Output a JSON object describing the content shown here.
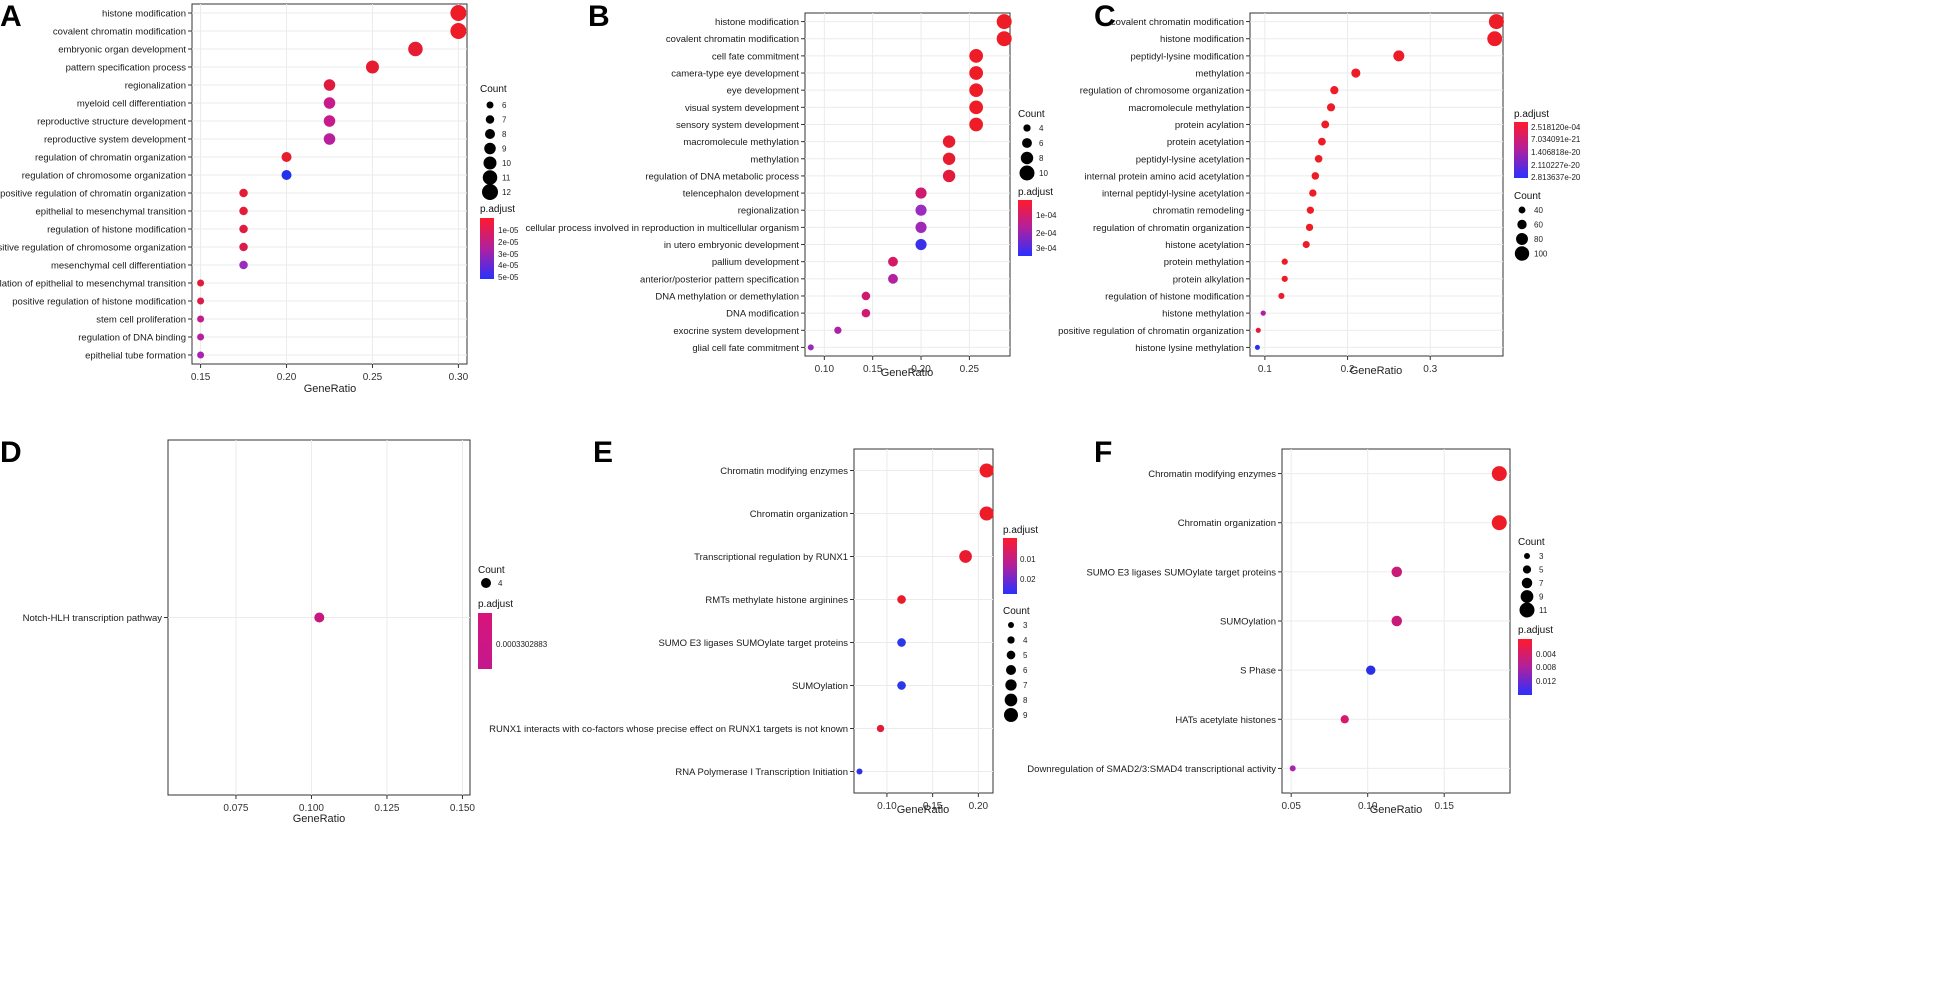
{
  "chart_data": [
    {
      "panel": "A",
      "type": "scatter",
      "categories": [
        "histone modification",
        "covalent chromatin modification",
        "embryonic organ development",
        "pattern specification process",
        "regionalization",
        "myeloid cell differentiation",
        "reproductive structure development",
        "reproductive system development",
        "regulation of chromatin organization",
        "regulation of chromosome organization",
        "positive regulation of chromatin organization",
        "epithelial to mesenchymal transition",
        "regulation of histone modification",
        "positive regulation of chromosome organization",
        "mesenchymal cell differentiation",
        "regulation of epithelial to mesenchymal transition",
        "positive regulation of histone modification",
        "stem cell proliferation",
        "regulation of DNA binding",
        "epithelial tube formation"
      ],
      "x": [
        0.3,
        0.3,
        0.275,
        0.25,
        0.225,
        0.225,
        0.225,
        0.225,
        0.2,
        0.2,
        0.175,
        0.175,
        0.175,
        0.175,
        0.175,
        0.15,
        0.15,
        0.15,
        0.15,
        0.15
      ],
      "count": [
        12,
        12,
        11,
        10,
        9,
        9,
        9,
        9,
        8,
        8,
        7,
        7,
        7,
        7,
        7,
        6,
        6,
        6,
        6,
        6
      ],
      "colors": [
        "#ee1c26",
        "#ee1c26",
        "#e51c32",
        "#e61b30",
        "#df1a3c",
        "#c81a8c",
        "#c81a8c",
        "#b91e9c",
        "#e81b2f",
        "#2233ee",
        "#e61c35",
        "#e31c38",
        "#e21a40",
        "#dc1b4a",
        "#9a2cc0",
        "#e11c3a",
        "#dc1b48",
        "#c31c8c",
        "#b520a0",
        "#aa24b2"
      ],
      "xlabel": "GeneRatio",
      "xticks": [
        "0.15",
        "0.20",
        "0.25",
        "0.30"
      ],
      "tick_values": [
        0.15,
        0.2,
        0.25,
        0.3
      ],
      "xlim": [
        0.145,
        0.305
      ],
      "legend_count": {
        "title": "Count",
        "labels": [
          "6",
          "7",
          "8",
          "9",
          "10",
          "11",
          "12"
        ],
        "values": [
          6,
          7,
          8,
          9,
          10,
          11,
          12
        ]
      },
      "legend_color": {
        "title": "p.adjust",
        "labels": [
          "1e-05",
          "2e-05",
          "3e-05",
          "4e-05",
          "5e-05"
        ]
      },
      "count_range": [
        6,
        12
      ],
      "radius_range": [
        3.5,
        8
      ]
    },
    {
      "panel": "B",
      "type": "scatter",
      "categories": [
        "histone modification",
        "covalent chromatin modification",
        "cell fate commitment",
        "camera-type eye development",
        "eye development",
        "visual system development",
        "sensory system development",
        "macromolecule methylation",
        "methylation",
        "regulation of DNA metabolic process",
        "telencephalon development",
        "regionalization",
        "cellular process involved in reproduction in multicellular organism",
        "in utero embryonic development",
        "pallium development",
        "anterior/posterior pattern specification",
        "DNA methylation or demethylation",
        "DNA modification",
        "exocrine system development",
        "glial cell fate commitment"
      ],
      "x": [
        0.286,
        0.286,
        0.257,
        0.257,
        0.257,
        0.257,
        0.257,
        0.229,
        0.229,
        0.229,
        0.2,
        0.2,
        0.2,
        0.2,
        0.171,
        0.171,
        0.143,
        0.143,
        0.114,
        0.086
      ],
      "count": [
        10,
        10,
        9,
        9,
        9,
        9,
        9,
        8,
        8,
        8,
        7,
        7,
        7,
        7,
        6,
        6,
        5,
        5,
        4,
        3
      ],
      "colors": [
        "#ee1c26",
        "#ee1c26",
        "#ee1c26",
        "#ee1c26",
        "#ee1c26",
        "#ee1c26",
        "#ee1c26",
        "#e81c30",
        "#e81c30",
        "#e21b3c",
        "#cf1a6e",
        "#9a2cc0",
        "#a028b8",
        "#3a30e8",
        "#d41a66",
        "#b320a0",
        "#cf1a6e",
        "#cf1a6e",
        "#b020a4",
        "#9a28b8"
      ],
      "xlabel": "GeneRatio",
      "xticks": [
        "0.10",
        "0.15",
        "0.20",
        "0.25"
      ],
      "tick_values": [
        0.1,
        0.15,
        0.2,
        0.25
      ],
      "xlim": [
        0.08,
        0.292
      ],
      "legend_count": {
        "title": "Count",
        "labels": [
          "4",
          "6",
          "8",
          "10"
        ],
        "values": [
          4,
          6,
          8,
          10
        ]
      },
      "legend_color": {
        "title": "p.adjust",
        "labels": [
          "1e-04",
          "2e-04",
          "3e-04"
        ]
      },
      "count_range": [
        3,
        10
      ],
      "radius_range": [
        3,
        7.5
      ]
    },
    {
      "panel": "C",
      "type": "scatter",
      "categories": [
        "covalent chromatin modification",
        "histone modification",
        "peptidyl-lysine modification",
        "methylation",
        "regulation of chromosome organization",
        "macromolecule methylation",
        "protein acylation",
        "protein acetylation",
        "peptidyl-lysine acetylation",
        "internal protein amino acid acetylation",
        "internal peptidyl-lysine acetylation",
        "chromatin remodeling",
        "regulation of chromatin organization",
        "histone acetylation",
        "protein methylation",
        "protein alkylation",
        "regulation of histone modification",
        "histone methylation",
        "positive regulation of chromatin organization",
        "histone lysine methylation"
      ],
      "x": [
        0.38,
        0.378,
        0.262,
        0.21,
        0.184,
        0.18,
        0.173,
        0.169,
        0.165,
        0.161,
        0.158,
        0.155,
        0.154,
        0.15,
        0.124,
        0.124,
        0.12,
        0.098,
        0.092,
        0.091
      ],
      "count": [
        105,
        104,
        73,
        58,
        51,
        50,
        48,
        47,
        46,
        45,
        44,
        43,
        43,
        42,
        35,
        35,
        34,
        27,
        26,
        25
      ],
      "colors": [
        "#ee1c26",
        "#ee1c26",
        "#ee1c26",
        "#ee1c26",
        "#ee1c26",
        "#ee1c26",
        "#ee1c26",
        "#ee1c26",
        "#ee1c26",
        "#ee1c26",
        "#ee1c26",
        "#ee1c26",
        "#ee1c26",
        "#ee1c26",
        "#ee1c26",
        "#ee1c26",
        "#e81c32",
        "#b020a4",
        "#e01c3e",
        "#2a30ee"
      ],
      "xlabel": "GeneRatio",
      "xticks": [
        "0.1",
        "0.2",
        "0.3"
      ],
      "tick_values": [
        0.1,
        0.2,
        0.3
      ],
      "xlim": [
        0.082,
        0.388
      ],
      "legend_count": {
        "title": "Count",
        "labels": [
          "40",
          "60",
          "80",
          "100"
        ],
        "values": [
          40,
          60,
          80,
          100
        ]
      },
      "legend_color": {
        "title": "p.adjust",
        "labels": [
          "2.518120e-04",
          "7.034091e-21",
          "1.406818e-20",
          "2.110227e-20",
          "2.813637e-20"
        ]
      },
      "count_range": [
        25,
        105
      ],
      "radius_range": [
        2.5,
        7.5
      ]
    },
    {
      "panel": "D",
      "type": "scatter",
      "categories": [
        "Notch-HLH transcription pathway"
      ],
      "x": [
        0.1026
      ],
      "count": [
        4
      ],
      "colors": [
        "#c8187e"
      ],
      "xlabel": "GeneRatio",
      "xticks": [
        "0.075",
        "0.100",
        "0.125",
        "0.150"
      ],
      "tick_values": [
        0.075,
        0.1,
        0.125,
        0.15
      ],
      "xlim": [
        0.0525,
        0.1525
      ],
      "legend_count": {
        "title": "Count",
        "labels": [
          "4"
        ],
        "values": [
          4
        ]
      },
      "legend_color": {
        "title": "p.adjust",
        "labels": [
          "0.0003302883"
        ]
      },
      "count_range": [
        4,
        4
      ],
      "radius_range": [
        5,
        5
      ]
    },
    {
      "panel": "E",
      "type": "scatter",
      "categories": [
        "Chromatin modifying enzymes",
        "Chromatin organization",
        "Transcriptional regulation by RUNX1",
        "RMTs methylate histone arginines",
        "SUMO E3 ligases SUMOylate target proteins",
        "SUMOylation",
        "RUNX1 interacts with co-factors whose precise effect on RUNX1 targets is not known",
        "RNA Polymerase I Transcription Initiation"
      ],
      "x": [
        0.209,
        0.209,
        0.186,
        0.116,
        0.116,
        0.116,
        0.093,
        0.07
      ],
      "count": [
        9,
        9,
        8,
        5,
        5,
        5,
        4,
        3
      ],
      "colors": [
        "#ee1c26",
        "#ee1c26",
        "#e81c2e",
        "#ea1c2a",
        "#2a38e8",
        "#2a38e8",
        "#e21c36",
        "#2e30f0"
      ],
      "xlabel": "GeneRatio",
      "xticks": [
        "0.10",
        "0.15",
        "0.20"
      ],
      "tick_values": [
        0.1,
        0.15,
        0.2
      ],
      "xlim": [
        0.064,
        0.216
      ],
      "legend_count": {
        "title": "Count",
        "labels": [
          "3",
          "4",
          "5",
          "6",
          "7",
          "8",
          "9"
        ],
        "values": [
          3,
          4,
          5,
          6,
          7,
          8,
          9
        ]
      },
      "legend_color": {
        "title": "p.adjust",
        "labels": [
          "0.01",
          "0.02"
        ]
      },
      "count_range": [
        3,
        9
      ],
      "radius_range": [
        3,
        7
      ]
    },
    {
      "panel": "F",
      "type": "scatter",
      "categories": [
        "Chromatin modifying enzymes",
        "Chromatin organization",
        "SUMO E3 ligases SUMOylate target proteins",
        "SUMOylation",
        "S Phase",
        "HATs acetylate histones",
        "Downregulation of SMAD2/3:SMAD4 transcriptional activity"
      ],
      "x": [
        0.186,
        0.186,
        0.119,
        0.119,
        0.102,
        0.085,
        0.051
      ],
      "count": [
        11,
        11,
        7,
        7,
        6,
        5,
        3
      ],
      "colors": [
        "#ee1c26",
        "#ee1c26",
        "#c91a78",
        "#c91a78",
        "#2a30e8",
        "#d8186a",
        "#aa24b0"
      ],
      "xlabel": "GeneRatio",
      "xticks": [
        "0.05",
        "0.10",
        "0.15"
      ],
      "tick_values": [
        0.05,
        0.1,
        0.15
      ],
      "xlim": [
        0.044,
        0.193
      ],
      "legend_count": {
        "title": "Count",
        "labels": [
          "3",
          "5",
          "7",
          "9",
          "11"
        ],
        "values": [
          3,
          5,
          7,
          9,
          11
        ]
      },
      "legend_color": {
        "title": "p.adjust",
        "labels": [
          "0.004",
          "0.008",
          "0.012"
        ]
      },
      "count_range": [
        3,
        11
      ],
      "radius_range": [
        3,
        7.5
      ]
    }
  ]
}
